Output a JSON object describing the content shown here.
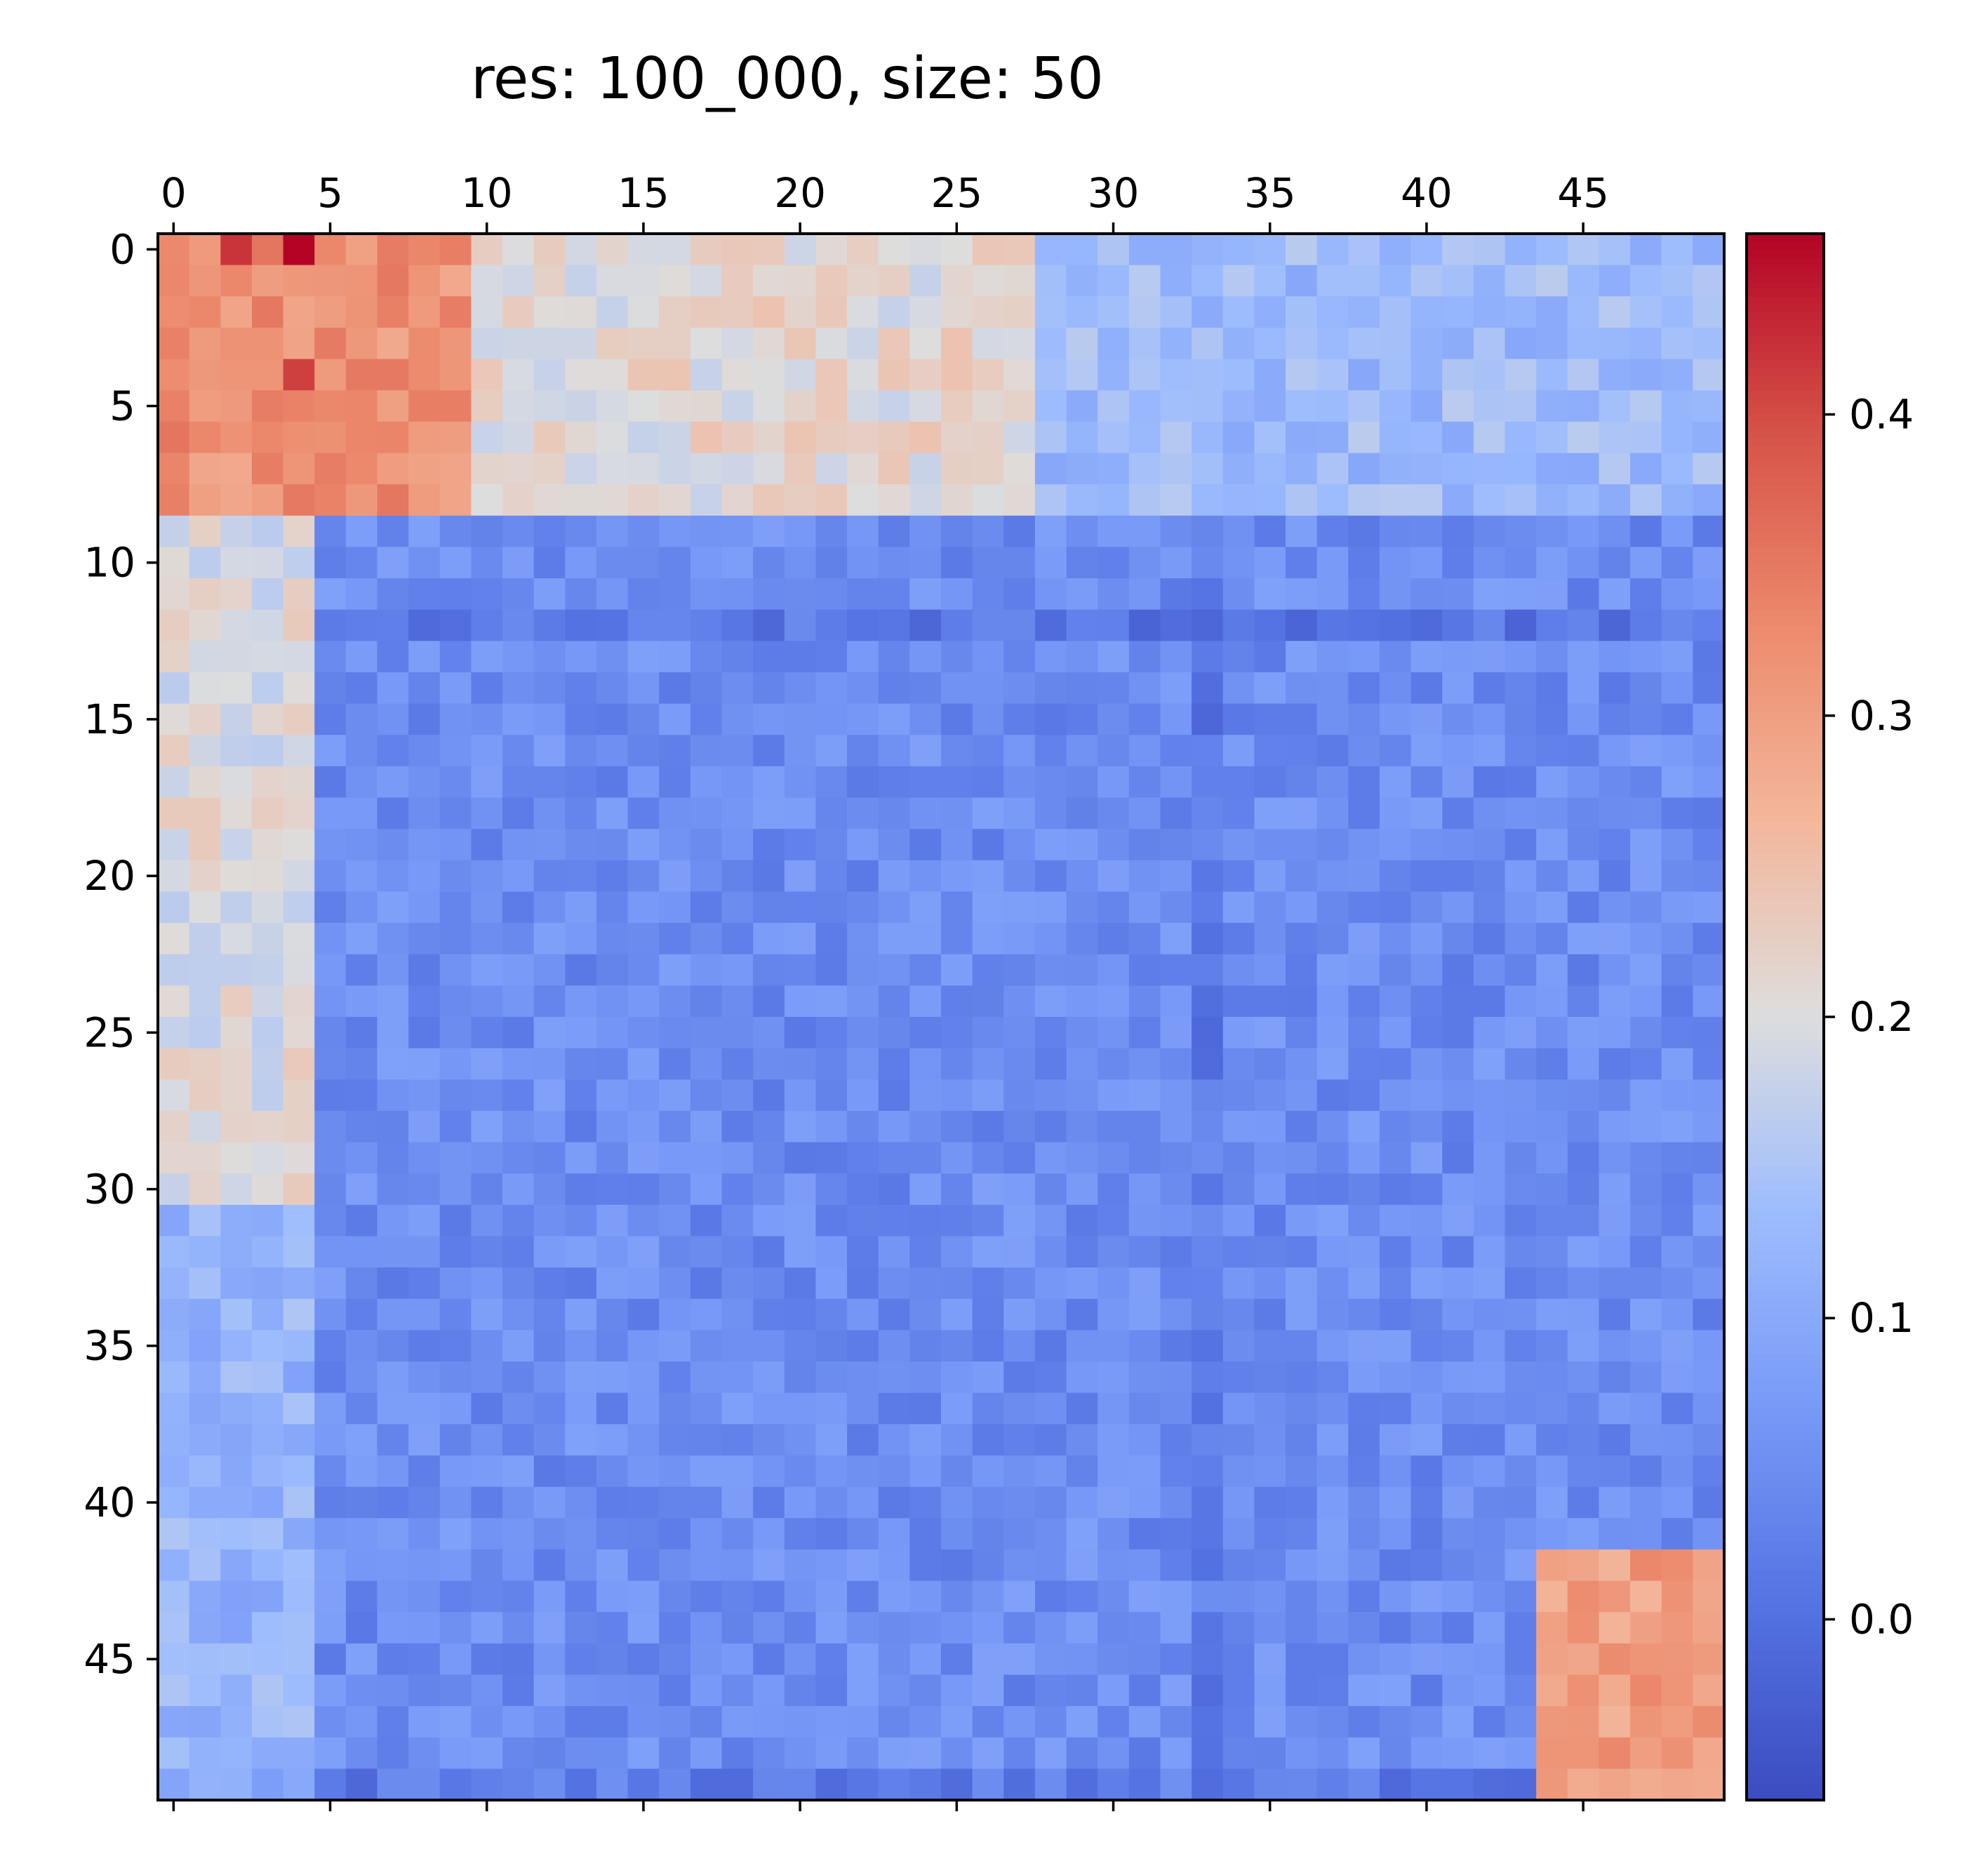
{
  "chart_data": {
    "type": "heatmap",
    "title": "res: 100_000, size: 50",
    "rows": 50,
    "cols": 50,
    "colormap": "coolwarm",
    "color_range": [
      -0.06,
      0.46
    ],
    "x_ticks": [
      0,
      5,
      10,
      15,
      20,
      25,
      30,
      35,
      40,
      45
    ],
    "y_ticks": [
      0,
      5,
      10,
      15,
      20,
      25,
      30,
      35,
      40,
      45
    ],
    "x_tick_position": "top",
    "colorbar": {
      "position": "right",
      "ticks": [
        0.0,
        0.1,
        0.2,
        0.3,
        0.4
      ],
      "tick_labels": [
        "0.0",
        "0.1",
        "0.2",
        "0.3",
        "0.4"
      ]
    },
    "note_values": "Matrix values estimated from colors; block structure: high correlation block rows/cols 0-8, moderate band rows 0-30 cols 0-4, low-value interior, high block rows/cols 42-49 near right edge.",
    "block_estimates": [
      {
        "rows": [
          0,
          0
        ],
        "cols": [
          0,
          4
        ],
        "value": 0.44
      },
      {
        "rows": [
          0,
          8
        ],
        "cols": [
          0,
          10
        ],
        "value": 0.32
      },
      {
        "rows": [
          0,
          8
        ],
        "cols": [
          10,
          28
        ],
        "value": 0.21
      },
      {
        "rows": [
          0,
          8
        ],
        "cols": [
          28,
          49
        ],
        "value": 0.13
      },
      {
        "rows": [
          9,
          30
        ],
        "cols": [
          0,
          4
        ],
        "value": 0.2
      },
      {
        "rows": [
          9,
          49
        ],
        "cols": [
          5,
          49
        ],
        "value": 0.05
      },
      {
        "rows": [
          31,
          49
        ],
        "cols": [
          0,
          4
        ],
        "value": 0.12
      },
      {
        "rows": [
          42,
          49
        ],
        "cols": [
          44,
          49
        ],
        "value": 0.3
      }
    ]
  }
}
